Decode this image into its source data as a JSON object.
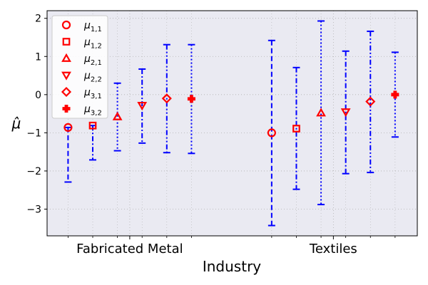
{
  "chart_data": {
    "type": "errorbar",
    "title": "",
    "xlabel": "Industry",
    "ylabel": "μ̂",
    "ylim": [
      -3.7,
      2.2
    ],
    "yticks": [
      2,
      1,
      0,
      -1,
      -2,
      -3
    ],
    "ytick_labels": [
      "2",
      "1",
      "0",
      "−1",
      "−2",
      "−3"
    ],
    "xlim": [
      -0.85,
      14.15
    ],
    "groups": [
      {
        "label": "Fabricated Metal",
        "tick_x": 2.5
      },
      {
        "label": "Textiles",
        "tick_x": 10.75
      }
    ],
    "grid": true,
    "legend_position": "upper-left",
    "colors": {
      "marker": "#ff0000",
      "errorbar": "#0000ff",
      "plot_bg": "#eaeaf2",
      "grid": "#b0b0b0"
    },
    "series": [
      {
        "name": "μ1,1",
        "base": "μ",
        "sub": "1,1",
        "marker": "circle",
        "linestyle": "dashed",
        "points": [
          {
            "x": 0,
            "y": -0.86,
            "lo": -2.29,
            "hi": -0.86
          },
          {
            "x": 8.25,
            "y": -1.0,
            "lo": -3.43,
            "hi": 1.42
          }
        ]
      },
      {
        "name": "μ1,2",
        "base": "μ",
        "sub": "1,2",
        "marker": "square",
        "linestyle": "dashdot",
        "points": [
          {
            "x": 1,
            "y": -0.81,
            "lo": -1.71,
            "hi": -0.81
          },
          {
            "x": 9.25,
            "y": -0.89,
            "lo": -2.48,
            "hi": 0.71
          }
        ]
      },
      {
        "name": "μ2,1",
        "base": "μ",
        "sub": "2,1",
        "marker": "triangle-up",
        "linestyle": "dotted",
        "points": [
          {
            "x": 2,
            "y": -0.58,
            "lo": -1.47,
            "hi": 0.3
          },
          {
            "x": 10.25,
            "y": -0.48,
            "lo": -2.88,
            "hi": 1.93
          }
        ]
      },
      {
        "name": "μ2,2",
        "base": "μ",
        "sub": "2,2",
        "marker": "triangle-down",
        "linestyle": "dashdot",
        "points": [
          {
            "x": 3,
            "y": -0.28,
            "lo": -1.27,
            "hi": 0.67
          },
          {
            "x": 11.25,
            "y": -0.45,
            "lo": -2.07,
            "hi": 1.14
          }
        ]
      },
      {
        "name": "μ3,1",
        "base": "μ",
        "sub": "3,1",
        "marker": "diamond",
        "linestyle": "dashdotdot",
        "points": [
          {
            "x": 4,
            "y": -0.1,
            "lo": -1.52,
            "hi": 1.31
          },
          {
            "x": 12.25,
            "y": -0.18,
            "lo": -2.04,
            "hi": 1.66
          }
        ]
      },
      {
        "name": "μ3,2",
        "base": "μ",
        "sub": "3,2",
        "marker": "plus",
        "linestyle": "dotted",
        "points": [
          {
            "x": 5,
            "y": -0.11,
            "lo": -1.54,
            "hi": 1.31
          },
          {
            "x": 13.25,
            "y": 0.0,
            "lo": -1.11,
            "hi": 1.11
          }
        ]
      }
    ]
  }
}
